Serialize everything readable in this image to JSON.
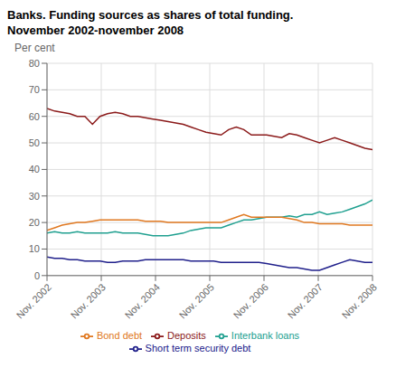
{
  "chart_data": {
    "type": "line",
    "title": "Banks. Funding sources as shares of total funding.",
    "subtitle": "November 2002-november 2008",
    "ylabel": "Per cent",
    "x": [
      0,
      0.139535,
      0.27907,
      0.418605,
      0.55814,
      0.697674,
      0.837209,
      0.976744,
      1.116279,
      1.255814,
      1.395349,
      1.534884,
      1.674419,
      1.813953,
      1.953488,
      2.093023,
      2.232558,
      2.372093,
      2.511628,
      2.651163,
      2.790698,
      2.930233,
      3.069767,
      3.209302,
      3.348837,
      3.488372,
      3.627907,
      3.767442,
      3.906977,
      4.046512,
      4.186047,
      4.325581,
      4.465116,
      4.604651,
      4.744186,
      4.883721,
      5.023256,
      5.162791,
      5.302326,
      5.44186,
      5.581395,
      5.72093,
      5.860465,
      6
    ],
    "xlim": [
      0,
      6
    ],
    "xticks": [
      {
        "value": 0,
        "label": "Nov. 2002"
      },
      {
        "value": 1,
        "label": "Nov. 2003"
      },
      {
        "value": 2,
        "label": "Nov. 2004"
      },
      {
        "value": 3,
        "label": "Nov. 2005"
      },
      {
        "value": 4,
        "label": "Nov. 2006"
      },
      {
        "value": 5,
        "label": "Nov. 2007"
      },
      {
        "value": 6,
        "label": "Nov. 2008"
      }
    ],
    "ylim": [
      0,
      80
    ],
    "yticks": [
      0,
      10,
      20,
      30,
      40,
      50,
      60,
      70,
      80
    ],
    "grid": true,
    "legend": "bottom",
    "series": [
      {
        "name": "Deposits",
        "color": "#8B1A1A",
        "values": [
          63,
          62,
          61.5,
          61,
          60,
          60,
          57,
          60,
          61,
          61.5,
          61,
          60,
          60,
          59.5,
          59,
          58.5,
          58,
          57.5,
          57,
          56,
          55,
          54,
          53.5,
          53,
          55,
          56,
          55,
          53,
          53,
          53,
          52.5,
          52,
          53.5,
          53,
          52,
          51,
          50,
          51,
          52,
          51,
          50,
          49,
          48,
          47.5
        ]
      },
      {
        "name": "Interbank loans",
        "color": "#20A090",
        "values": [
          16,
          16.5,
          16,
          16,
          16.5,
          16,
          16,
          16,
          16,
          16.5,
          16,
          16,
          16,
          15.5,
          15,
          15,
          15,
          15.5,
          16,
          17,
          17.5,
          18,
          18,
          18,
          19,
          20,
          21,
          21,
          21.5,
          22,
          22,
          22,
          22.5,
          22,
          23,
          23,
          24,
          23,
          23.5,
          24,
          25,
          26,
          27,
          28.5
        ]
      },
      {
        "name": "Bond debt",
        "color": "#E07820",
        "values": [
          17,
          18,
          19,
          19.5,
          20,
          20,
          20.5,
          21,
          21,
          21,
          21,
          21,
          21,
          20.5,
          20.5,
          20.5,
          20,
          20,
          20,
          20,
          20,
          20,
          20,
          20,
          21,
          22,
          23,
          22,
          22,
          22,
          22,
          22,
          21.5,
          21,
          20,
          20,
          19.5,
          19.5,
          19.5,
          19.5,
          19,
          19,
          19,
          19
        ]
      },
      {
        "name": "Short term security debt",
        "color": "#20208B",
        "values": [
          7,
          6.5,
          6.5,
          6,
          6,
          5.5,
          5.5,
          5.5,
          5,
          5,
          5.5,
          5.5,
          5.5,
          6,
          6,
          6,
          6,
          6,
          6,
          5.5,
          5.5,
          5.5,
          5.5,
          5,
          5,
          5,
          5,
          5,
          5,
          4.5,
          4,
          3.5,
          3,
          3,
          2.5,
          2,
          2,
          3,
          4,
          5,
          6,
          5.5,
          5,
          5
        ]
      }
    ]
  }
}
